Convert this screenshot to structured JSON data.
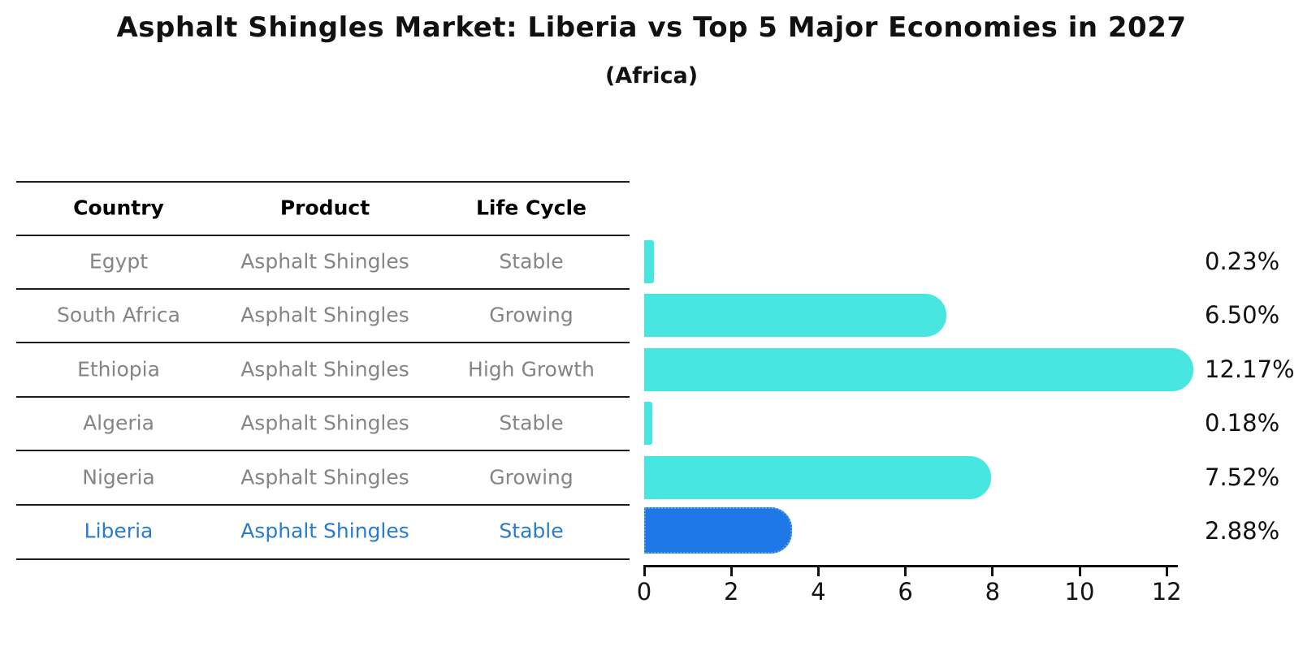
{
  "title": "Asphalt Shingles Market: Liberia vs Top 5 Major Economies in 2027",
  "subtitle": "(Africa)",
  "table": {
    "columns": [
      "Country",
      "Product",
      "Life Cycle"
    ],
    "rows": [
      {
        "country": "Egypt",
        "product": "Asphalt Shingles",
        "life_cycle": "Stable",
        "highlight": false
      },
      {
        "country": "South Africa",
        "product": "Asphalt Shingles",
        "life_cycle": "Growing",
        "highlight": false
      },
      {
        "country": "Ethiopia",
        "product": "Asphalt Shingles",
        "life_cycle": "High Growth",
        "highlight": false
      },
      {
        "country": "Algeria",
        "product": "Asphalt Shingles",
        "life_cycle": "Stable",
        "highlight": false
      },
      {
        "country": "Nigeria",
        "product": "Asphalt Shingles",
        "life_cycle": "Growing",
        "highlight": false
      },
      {
        "country": "Liberia",
        "product": "Asphalt Shingles",
        "life_cycle": "Stable",
        "highlight": true
      }
    ]
  },
  "chart_data": {
    "type": "bar",
    "orientation": "horizontal",
    "title": "Asphalt Shingles Market: Liberia vs Top 5 Major Economies in 2027",
    "subtitle": "(Africa)",
    "categories": [
      "Egypt",
      "South Africa",
      "Ethiopia",
      "Algeria",
      "Nigeria",
      "Liberia"
    ],
    "values": [
      0.23,
      6.5,
      12.17,
      0.18,
      7.52,
      2.88
    ],
    "value_labels": [
      "0.23%",
      "6.50%",
      "12.17%",
      "0.18%",
      "7.52%",
      "2.88%"
    ],
    "xlabel": "",
    "ylabel": "",
    "xlim": [
      0,
      12.8
    ],
    "xticks": [
      0,
      2,
      4,
      6,
      8,
      10,
      12
    ],
    "grid": false,
    "legend": false,
    "highlight_category": "Liberia",
    "colors": {
      "bar": "#47e6e1",
      "highlight_bar": "#1e78e6",
      "highlight_bar_border": "#5aa2f0",
      "highlight_text": "#2a7bc8",
      "table_text": "#858585",
      "header_text": "#000000",
      "axis": "#111111"
    }
  }
}
